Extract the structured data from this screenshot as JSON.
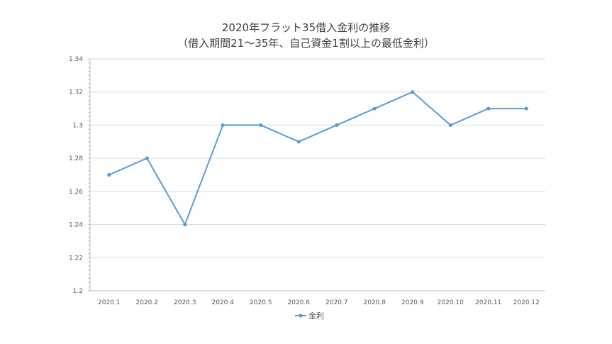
{
  "chart_data": {
    "type": "line",
    "title": "2020年フラット35借入金利の推移",
    "subtitle": "（借入期間21～35年、自己資金1割以上の最低金利）",
    "xlabel": "",
    "ylabel": "",
    "categories": [
      "2020.1",
      "2020.2",
      "2020.3",
      "2020.4",
      "2020.5",
      "2020.6",
      "2020.7",
      "2020.8",
      "2020.9",
      "2020.10",
      "2020.11",
      "2020.12"
    ],
    "series": [
      {
        "name": "金利",
        "values": [
          1.27,
          1.28,
          1.24,
          1.3,
          1.3,
          1.29,
          1.3,
          1.31,
          1.32,
          1.3,
          1.31,
          1.31
        ]
      }
    ],
    "ylim": [
      1.2,
      1.34
    ],
    "yticks": [
      "1.34",
      "1.32",
      "1.3",
      "1.28",
      "1.26",
      "1.24",
      "1.22",
      "1.2"
    ],
    "grid": true,
    "legend": "bottom",
    "colors": {
      "series": "#5b9bd5",
      "grid": "#d9d9d9",
      "axis": "#bfbfbf"
    }
  }
}
